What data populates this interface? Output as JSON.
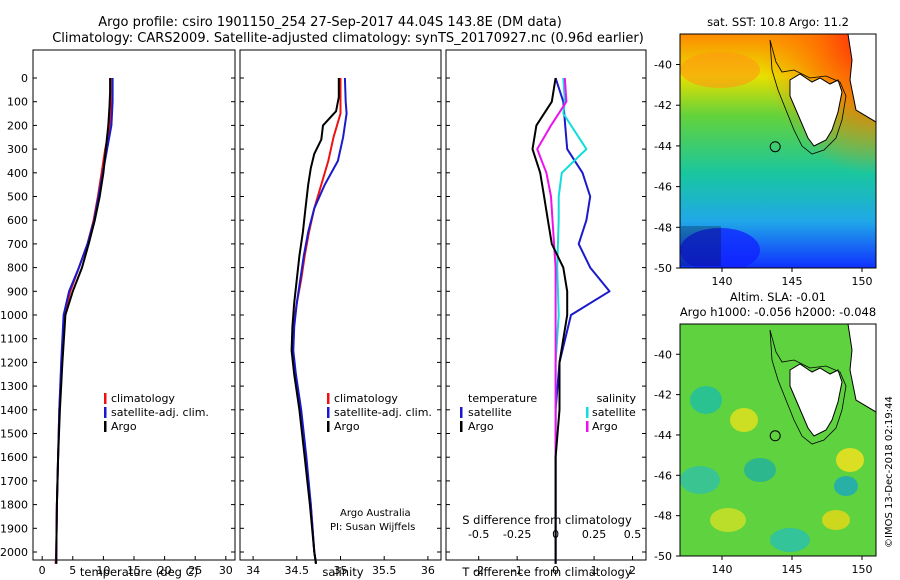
{
  "title_line1": "Argo profile: csiro 1901150_254 27-Sep-2017 44.04S 143.8E (DM data)",
  "title_line2": "Climatology: CARS2009. Satellite-adjusted climatology: synTS_20170927.nc (0.96d earlier)",
  "colors": {
    "argo": "#000000",
    "climatology": "#ee1111",
    "satellite": "#1a1acc",
    "salinity_sat": "#11dddd",
    "salinity_argo": "#ee11ee"
  },
  "chart_data": [
    {
      "type": "line",
      "xlabel": "temperature (deg C)",
      "ylabel": "",
      "xlim": [
        -1.5,
        31.5
      ],
      "ylim": [
        2060,
        0
      ],
      "xticks": [
        "0",
        "5",
        "10",
        "15",
        "20",
        "25",
        "30"
      ],
      "legend": [
        "climatology",
        "satellite-adj. clim.",
        "Argo"
      ],
      "legend_position": "lower-middle",
      "series": [
        {
          "name": "climatology",
          "x": [
            11.2,
            11.2,
            11.1,
            10.3,
            9.7,
            9.1,
            8.4,
            7.4,
            6.0,
            4.6,
            3.6,
            3.2,
            2.8,
            2.6,
            2.4,
            2.3,
            2.2
          ],
          "y": [
            0,
            100,
            200,
            300,
            400,
            500,
            600,
            700,
            800,
            900,
            1000,
            1200,
            1400,
            1600,
            1800,
            2000,
            2050
          ]
        },
        {
          "name": "satellite-adj. clim.",
          "x": [
            11.5,
            11.5,
            11.3,
            10.6,
            9.9,
            9.2,
            8.5,
            7.4,
            6.0,
            4.4,
            3.5,
            3.1,
            2.8,
            2.6,
            2.4,
            2.3,
            2.3
          ],
          "y": [
            0,
            100,
            200,
            300,
            400,
            500,
            600,
            700,
            800,
            900,
            1000,
            1200,
            1400,
            1600,
            1800,
            2000,
            2050
          ]
        },
        {
          "name": "Argo",
          "x": [
            11.1,
            11.1,
            11.0,
            10.8,
            10.4,
            10.0,
            9.4,
            8.6,
            7.6,
            6.5,
            5.0,
            3.8,
            3.3,
            2.9,
            2.6,
            2.4,
            2.3,
            2.3
          ],
          "y": [
            0,
            60,
            120,
            200,
            300,
            400,
            500,
            600,
            700,
            800,
            900,
            1000,
            1200,
            1400,
            1600,
            1800,
            2000,
            2050
          ]
        }
      ]
    },
    {
      "type": "line",
      "xlabel": "salinity",
      "xlim": [
        33.85,
        36.15
      ],
      "ylim": [
        2060,
        0
      ],
      "xticks": [
        "34",
        "34.5",
        "35",
        "35.5",
        "36"
      ],
      "legend": [
        "climatology",
        "satellite-adj. clim.",
        "Argo"
      ],
      "legend_position": "lower-right",
      "annotation": [
        "Argo Australia",
        "PI: Susan Wijffels"
      ],
      "series": [
        {
          "name": "climatology",
          "x": [
            35.0,
            35.0,
            35.0,
            34.92,
            34.86,
            34.78,
            34.7,
            34.64,
            34.59,
            34.55,
            34.5,
            34.46,
            34.45,
            34.48,
            34.54,
            34.6,
            34.66,
            34.7,
            34.72
          ],
          "y": [
            0,
            100,
            150,
            250,
            350,
            450,
            550,
            650,
            750,
            850,
            950,
            1050,
            1150,
            1250,
            1400,
            1600,
            1800,
            2000,
            2050
          ]
        },
        {
          "name": "satellite-adj. clim.",
          "x": [
            35.05,
            35.06,
            35.07,
            35.03,
            34.97,
            34.82,
            34.7,
            34.63,
            34.58,
            34.54,
            34.5,
            34.47,
            34.46,
            34.49,
            34.55,
            34.61,
            34.66,
            34.7,
            34.72
          ],
          "y": [
            0,
            100,
            150,
            250,
            350,
            450,
            550,
            650,
            750,
            850,
            950,
            1050,
            1150,
            1250,
            1400,
            1600,
            1800,
            2000,
            2050
          ]
        },
        {
          "name": "Argo",
          "x": [
            34.98,
            34.98,
            34.95,
            34.8,
            34.78,
            34.7,
            34.66,
            34.63,
            34.6,
            34.57,
            34.53,
            34.5,
            34.47,
            34.45,
            34.44,
            34.47,
            34.53,
            34.59,
            34.65,
            34.7,
            34.72
          ],
          "y": [
            0,
            80,
            140,
            200,
            260,
            320,
            380,
            450,
            550,
            650,
            750,
            850,
            950,
            1050,
            1150,
            1250,
            1400,
            1600,
            1800,
            2000,
            2050
          ]
        }
      ]
    },
    {
      "type": "line",
      "xlabel": "T difference from climatology",
      "xlabel2": "S difference from climatology",
      "xlim": [
        -2.85,
        2.35
      ],
      "ylim": [
        2060,
        0
      ],
      "xticks": [
        "-2",
        "-1",
        "0",
        "1",
        "2"
      ],
      "xticks2": [
        "-0.5",
        "-0.25",
        "0",
        "0.25",
        "0.5"
      ],
      "legend_left_title": "temperature",
      "legend_right_title": "salinity",
      "legend_left": [
        "satellite",
        "Argo"
      ],
      "legend_right": [
        "satellite",
        "Argo"
      ],
      "series": [
        {
          "name": "temperature satellite",
          "x": [
            0.0,
            0.2,
            0.25,
            0.3,
            0.7,
            0.9,
            0.8,
            0.6,
            0.9,
            1.4,
            0.4,
            0.1,
            0.0,
            0.0,
            0.0,
            0.0,
            0.0
          ],
          "y": [
            0,
            100,
            200,
            300,
            400,
            500,
            600,
            700,
            800,
            900,
            1000,
            1200,
            1400,
            1600,
            1800,
            2000,
            2050
          ]
        },
        {
          "name": "temperature Argo",
          "x": [
            0.0,
            -0.1,
            -0.5,
            -0.6,
            -0.4,
            -0.3,
            -0.2,
            -0.1,
            0.2,
            0.3,
            0.3,
            0.1,
            0.1,
            0.0,
            0.0,
            0.0,
            0.0
          ],
          "y": [
            0,
            100,
            200,
            300,
            400,
            500,
            600,
            700,
            800,
            900,
            1000,
            1200,
            1400,
            1600,
            1800,
            2000,
            2050
          ]
        },
        {
          "name": "salinity satellite",
          "x": [
            0.05,
            0.06,
            0.05,
            0.2,
            0.04,
            0.02,
            0.02,
            0.01,
            0.02,
            0.0,
            0.0,
            0.0,
            0.0,
            0.0,
            0.0
          ],
          "y": [
            0,
            100,
            150,
            300,
            400,
            500,
            600,
            800,
            1000,
            1200,
            1400,
            1600,
            1800,
            2000,
            2050
          ]
        },
        {
          "name": "salinity Argo",
          "x": [
            0.06,
            0.07,
            -0.03,
            -0.12,
            -0.06,
            -0.03,
            -0.02,
            0.0,
            0.0,
            0.0,
            0.0,
            0.0,
            0.0,
            0.0,
            0.0
          ],
          "y": [
            0,
            100,
            200,
            300,
            400,
            500,
            600,
            800,
            1000,
            1200,
            1400,
            1600,
            1800,
            2000,
            2050
          ]
        }
      ]
    }
  ],
  "depth_ticks": [
    "0",
    "100",
    "200",
    "300",
    "400",
    "500",
    "600",
    "700",
    "800",
    "900",
    "1000",
    "1100",
    "1200",
    "1300",
    "1400",
    "1500",
    "1600",
    "1700",
    "1800",
    "1900",
    "2000"
  ],
  "map_top": {
    "title": "sat. SST: 10.8 Argo: 11.2",
    "yticks": [
      "-40",
      "-42",
      "-44",
      "-46",
      "-48",
      "-50"
    ],
    "xticks": [
      "140",
      "145",
      "150"
    ],
    "lon": [
      137,
      151
    ],
    "lat": [
      -38.5,
      -50
    ],
    "marker": {
      "lon": 143.8,
      "lat": -44.04
    }
  },
  "map_bottom": {
    "title1": "Altim. SLA: -0.01",
    "title2": "Argo h1000: -0.056 h2000: -0.048",
    "yticks": [
      "-40",
      "-42",
      "-44",
      "-46",
      "-48",
      "-50"
    ],
    "xticks": [
      "140",
      "145",
      "150"
    ],
    "lon": [
      137,
      151
    ],
    "lat": [
      -38.5,
      -50
    ],
    "marker": {
      "lon": 143.8,
      "lat": -44.04
    }
  },
  "credit": "©IMOS 13-Dec-2018 02:19:44"
}
